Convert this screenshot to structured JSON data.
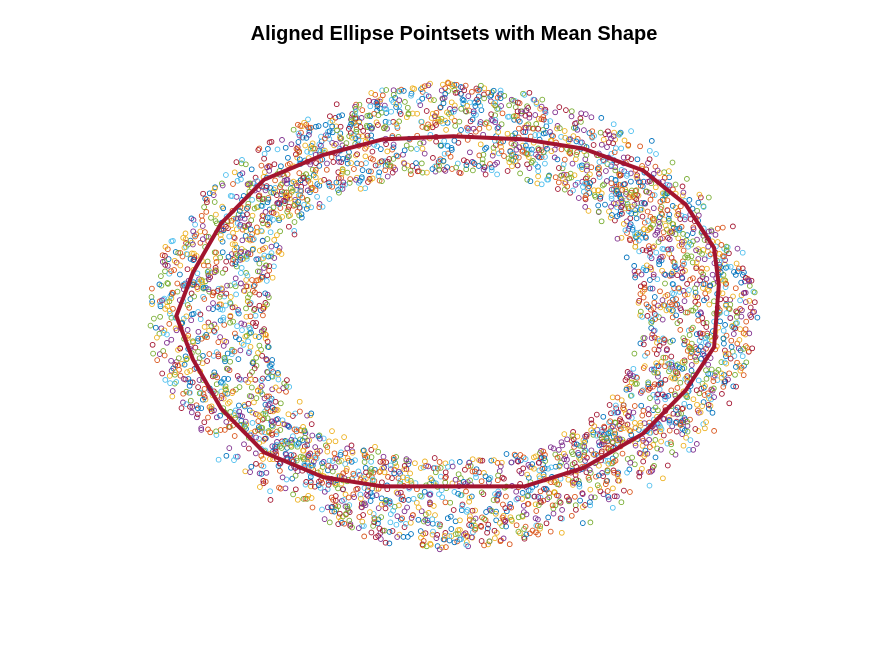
{
  "chart_data": {
    "type": "scatter",
    "title": "Aligned Ellipse Pointsets with Mean Shape",
    "xlabel": "",
    "ylabel": "",
    "axes_visible": false,
    "grid": false,
    "legend": "none",
    "xlim": [
      -1.45,
      1.45
    ],
    "ylim": [
      -0.82,
      0.82
    ],
    "marker": "circle-open",
    "series_colors": [
      "#0072BD",
      "#D95319",
      "#EDB120",
      "#7E2F8E",
      "#77AC30",
      "#4DBEEE",
      "#A2142F"
    ],
    "pointsets": {
      "count": 40,
      "points_per_set": 100,
      "shape": "ellipse",
      "radius_x_range": [
        0.85,
        1.4
      ],
      "radius_y_range": [
        0.5,
        0.82
      ],
      "center": [
        0,
        0
      ]
    },
    "mean_shape": {
      "name": "Mean Shape",
      "color": "#A2142F",
      "line_width": 4,
      "x": [
        1.12,
        1.1,
        0.98,
        0.8,
        0.55,
        0.3,
        0.0,
        -0.3,
        -0.55,
        -0.8,
        -0.98,
        -1.1,
        -1.17,
        -1.1,
        -0.98,
        -0.8,
        -0.55,
        -0.3,
        0.0,
        0.3,
        0.55,
        0.8,
        0.98,
        1.1,
        1.12
      ],
      "y": [
        0.1,
        0.22,
        0.36,
        0.47,
        0.54,
        0.57,
        0.58,
        0.57,
        0.52,
        0.44,
        0.3,
        0.14,
        0.0,
        -0.14,
        -0.3,
        -0.44,
        -0.52,
        -0.55,
        -0.55,
        -0.55,
        -0.49,
        -0.38,
        -0.24,
        -0.1,
        0.1
      ]
    }
  }
}
